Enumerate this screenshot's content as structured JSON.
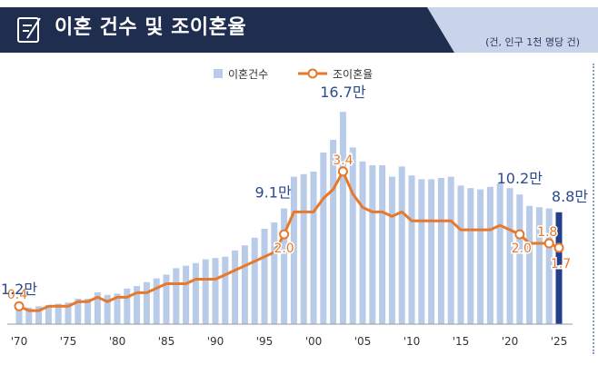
{
  "header": {
    "title": "이혼 건수 및 조이혼율",
    "unit_note": "(건, 인구 1천 명당 건)",
    "icon": "document-pen-icon"
  },
  "colors": {
    "header_bg": "#1f2d4e",
    "header_accent": "#c8d4ea",
    "bar": "#b8cbe8",
    "bar_highlight": "#233f8c",
    "line": "#e8782a",
    "blue_label": "#2c4a8f"
  },
  "chart_data": {
    "type": "bar",
    "x": [
      1970,
      1971,
      1972,
      1973,
      1974,
      1975,
      1976,
      1977,
      1978,
      1979,
      1980,
      1981,
      1982,
      1983,
      1984,
      1985,
      1986,
      1987,
      1988,
      1989,
      1990,
      1991,
      1992,
      1993,
      1994,
      1995,
      1996,
      1997,
      1998,
      1999,
      2000,
      2001,
      2002,
      2003,
      2004,
      2005,
      2006,
      2007,
      2008,
      2009,
      2010,
      2011,
      2012,
      2013,
      2014,
      2015,
      2016,
      2017,
      2018,
      2019,
      2020,
      2021,
      2022,
      2023,
      2024
    ],
    "x_tick_labels": [
      "'70",
      "'75",
      "'80",
      "'85",
      "'90",
      "'95",
      "'00",
      "'05",
      "'10",
      "'15",
      "'20",
      "'25"
    ],
    "x_tick_years": [
      1970,
      1975,
      1980,
      1985,
      1990,
      1995,
      2000,
      2005,
      2010,
      2015,
      2020,
      2025
    ],
    "series": [
      {
        "name": "이혼건수",
        "kind": "bar",
        "values": [
          1.2,
          1.3,
          1.4,
          1.5,
          1.6,
          1.7,
          2.0,
          2.0,
          2.5,
          2.3,
          2.4,
          2.8,
          3.0,
          3.3,
          3.6,
          3.9,
          4.4,
          4.6,
          4.8,
          5.1,
          5.2,
          5.3,
          5.8,
          6.2,
          6.8,
          7.5,
          8.0,
          9.1,
          11.6,
          11.8,
          12.0,
          13.5,
          14.5,
          16.7,
          13.9,
          12.8,
          12.5,
          12.5,
          11.6,
          12.4,
          11.7,
          11.4,
          11.4,
          11.5,
          11.6,
          10.9,
          10.7,
          10.6,
          10.8,
          11.1,
          10.7,
          10.2,
          9.3,
          9.2,
          9.1
        ],
        "highlight_last": {
          "year": 2025,
          "value": 8.8
        }
      },
      {
        "name": "조이혼율",
        "kind": "line",
        "values": [
          0.4,
          0.3,
          0.3,
          0.4,
          0.4,
          0.4,
          0.5,
          0.5,
          0.6,
          0.5,
          0.6,
          0.6,
          0.7,
          0.7,
          0.8,
          0.9,
          0.9,
          0.9,
          1.0,
          1.0,
          1.0,
          1.1,
          1.2,
          1.3,
          1.4,
          1.5,
          1.6,
          2.0,
          2.5,
          2.5,
          2.5,
          2.8,
          3.0,
          3.4,
          2.9,
          2.6,
          2.5,
          2.5,
          2.4,
          2.5,
          2.3,
          2.3,
          2.3,
          2.3,
          2.3,
          2.1,
          2.1,
          2.1,
          2.1,
          2.2,
          2.1,
          2.0,
          1.8,
          1.8,
          1.8
        ],
        "last_point": {
          "year": 2025,
          "value": 1.7
        }
      }
    ],
    "bar_labels": [
      {
        "year": 1970,
        "text": "1.2만"
      },
      {
        "year": 1997,
        "text": "9.1만"
      },
      {
        "year": 2003,
        "text": "16.7만"
      },
      {
        "year": 2021,
        "text": "10.2만"
      },
      {
        "year": 2025,
        "text": "8.8만"
      }
    ],
    "line_labels": [
      {
        "year": 1970,
        "text": "0.4"
      },
      {
        "year": 1997,
        "text": "2.0"
      },
      {
        "year": 2003,
        "text": "3.4"
      },
      {
        "year": 2021,
        "text": "2.0"
      },
      {
        "year": 2024,
        "text": "1.8"
      },
      {
        "year": 2025,
        "text": "1.7"
      }
    ],
    "legend": [
      "이혼건수",
      "조이혼율"
    ],
    "legend_position": "top-center",
    "ylim_bars": [
      0,
      18
    ],
    "ylim_line": [
      0,
      5.6
    ],
    "grid": false
  }
}
